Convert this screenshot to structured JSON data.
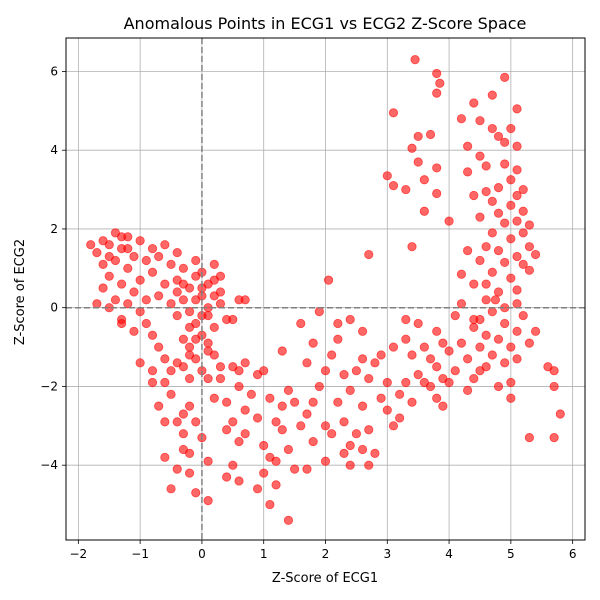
{
  "chart_data": {
    "type": "scatter",
    "title": "Anomalous Points in ECG1 vs ECG2 Z-Score Space",
    "xlabel": "Z-Score of ECG1",
    "ylabel": "Z-Score of ECG2",
    "xlim": [
      -2.2,
      6.2
    ],
    "ylim": [
      -5.9,
      6.85
    ],
    "xticks": [
      -2,
      -1,
      0,
      1,
      2,
      3,
      4,
      5,
      6
    ],
    "yticks": [
      -4,
      -2,
      0,
      2,
      4,
      6
    ],
    "grid": true,
    "reference_lines": {
      "x": 0,
      "y": 0,
      "style": "dashed",
      "color": "#808080"
    },
    "marker_color": "#ff0000",
    "marker_alpha": 0.6,
    "points": [
      [
        -1.8,
        1.6
      ],
      [
        -1.7,
        1.4
      ],
      [
        -1.6,
        1.1
      ],
      [
        -1.5,
        1.6
      ],
      [
        -1.5,
        0.8
      ],
      [
        -1.4,
        1.9
      ],
      [
        -1.4,
        1.2
      ],
      [
        -1.3,
        0.6
      ],
      [
        -1.3,
        1.5
      ],
      [
        -1.2,
        1.0
      ],
      [
        -1.2,
        1.8
      ],
      [
        -1.1,
        0.4
      ],
      [
        -1.1,
        1.3
      ],
      [
        -1.0,
        1.7
      ],
      [
        -1.0,
        0.7
      ],
      [
        -0.9,
        1.2
      ],
      [
        -0.9,
        0.2
      ],
      [
        -0.8,
        1.5
      ],
      [
        -0.8,
        0.9
      ],
      [
        -0.7,
        1.3
      ],
      [
        -0.7,
        0.3
      ],
      [
        -0.6,
        1.6
      ],
      [
        -0.6,
        0.6
      ],
      [
        -0.5,
        1.1
      ],
      [
        -0.5,
        0.1
      ],
      [
        -0.4,
        1.4
      ],
      [
        -0.4,
        0.7
      ],
      [
        -0.3,
        1.0
      ],
      [
        -0.3,
        0.2
      ],
      [
        -1.6,
        0.5
      ],
      [
        -1.4,
        0.2
      ],
      [
        -1.2,
        0.1
      ],
      [
        -1.0,
        -0.1
      ],
      [
        -0.9,
        -0.4
      ],
      [
        -0.8,
        -0.7
      ],
      [
        -0.7,
        -1.0
      ],
      [
        -0.6,
        -1.3
      ],
      [
        -0.5,
        -1.6
      ],
      [
        -1.3,
        -0.3
      ],
      [
        -1.1,
        -0.6
      ],
      [
        -1.0,
        -1.4
      ],
      [
        -0.8,
        -1.9
      ],
      [
        -0.6,
        -1.9
      ],
      [
        -1.7,
        0.1
      ],
      [
        -1.5,
        0.0
      ],
      [
        -1.3,
        -0.4
      ],
      [
        -1.2,
        1.5
      ],
      [
        -1.5,
        1.3
      ],
      [
        -1.6,
        1.7
      ],
      [
        -1.3,
        1.8
      ],
      [
        -0.1,
        1.2
      ],
      [
        0.0,
        0.9
      ],
      [
        0.1,
        0.6
      ],
      [
        0.2,
        0.3
      ],
      [
        0.3,
        0.1
      ],
      [
        0.0,
        0.5
      ],
      [
        -0.1,
        0.2
      ],
      [
        -0.2,
        -0.1
      ],
      [
        -0.1,
        -0.4
      ],
      [
        0.0,
        -0.7
      ],
      [
        -0.2,
        -1.0
      ],
      [
        -0.1,
        -1.3
      ],
      [
        0.0,
        -1.6
      ],
      [
        -0.2,
        -1.8
      ],
      [
        -0.3,
        -1.5
      ],
      [
        -0.2,
        -1.2
      ],
      [
        -0.3,
        -0.8
      ],
      [
        -0.2,
        -0.5
      ],
      [
        -0.4,
        -0.2
      ],
      [
        0.1,
        -0.2
      ],
      [
        0.2,
        -0.5
      ],
      [
        0.1,
        -0.9
      ],
      [
        0.2,
        -1.2
      ],
      [
        0.3,
        -1.5
      ],
      [
        0.1,
        -1.8
      ],
      [
        0.3,
        0.8
      ],
      [
        0.2,
        1.1
      ],
      [
        0.1,
        0.0
      ],
      [
        -0.3,
        0.6
      ],
      [
        -0.4,
        0.4
      ],
      [
        -0.1,
        0.8
      ],
      [
        0.0,
        0.3
      ],
      [
        0.3,
        0.4
      ],
      [
        0.2,
        0.7
      ],
      [
        -0.2,
        0.5
      ],
      [
        0.0,
        -0.2
      ],
      [
        -0.1,
        -0.8
      ],
      [
        0.1,
        -1.1
      ],
      [
        -0.4,
        -1.4
      ],
      [
        0.4,
        -0.3
      ],
      [
        -0.2,
        -2.5
      ],
      [
        -0.1,
        -2.9
      ],
      [
        -0.3,
        -3.2
      ],
      [
        -0.2,
        -3.7
      ],
      [
        -0.4,
        -4.1
      ],
      [
        -0.1,
        -4.7
      ],
      [
        0.0,
        -3.3
      ],
      [
        0.1,
        -3.9
      ],
      [
        -0.3,
        -2.7
      ],
      [
        0.2,
        -2.3
      ],
      [
        0.1,
        -4.9
      ],
      [
        -0.5,
        -4.6
      ],
      [
        -0.6,
        -3.8
      ],
      [
        -0.7,
        -2.5
      ],
      [
        -0.6,
        -2.9
      ],
      [
        -0.8,
        -1.6
      ],
      [
        -0.5,
        -2.2
      ],
      [
        -0.4,
        -2.9
      ],
      [
        -0.3,
        -3.6
      ],
      [
        -0.2,
        -4.2
      ],
      [
        0.3,
        -1.8
      ],
      [
        0.4,
        -2.4
      ],
      [
        0.5,
        -2.9
      ],
      [
        0.6,
        -3.4
      ],
      [
        0.7,
        -2.6
      ],
      [
        0.8,
        -2.2
      ],
      [
        0.6,
        -1.6
      ],
      [
        0.5,
        -4.0
      ],
      [
        0.4,
        -4.3
      ],
      [
        0.6,
        -4.4
      ],
      [
        0.7,
        -3.2
      ],
      [
        0.9,
        -2.8
      ],
      [
        0.9,
        -1.7
      ],
      [
        0.7,
        -1.4
      ],
      [
        0.6,
        -2.0
      ],
      [
        0.4,
        -3.1
      ],
      [
        0.6,
        0.2
      ],
      [
        0.5,
        -0.3
      ],
      [
        0.7,
        0.2
      ],
      [
        0.5,
        -1.5
      ],
      [
        1.0,
        -1.6
      ],
      [
        1.1,
        -2.3
      ],
      [
        1.2,
        -2.9
      ],
      [
        1.0,
        -3.5
      ],
      [
        1.1,
        -3.8
      ],
      [
        1.2,
        -4.5
      ],
      [
        1.3,
        -2.5
      ],
      [
        1.4,
        -2.1
      ],
      [
        1.3,
        -3.1
      ],
      [
        1.2,
        -3.9
      ],
      [
        1.5,
        -4.1
      ],
      [
        1.4,
        -3.6
      ],
      [
        1.6,
        -3.0
      ],
      [
        1.5,
        -2.4
      ],
      [
        1.7,
        -2.7
      ],
      [
        1.8,
        -3.4
      ],
      [
        1.9,
        -2.0
      ],
      [
        1.7,
        -1.4
      ],
      [
        1.8,
        -0.9
      ],
      [
        1.9,
        -0.1
      ],
      [
        1.6,
        -0.4
      ],
      [
        1.3,
        -1.1
      ],
      [
        1.1,
        -5.0
      ],
      [
        1.4,
        -5.4
      ],
      [
        1.0,
        -4.2
      ],
      [
        0.9,
        -4.6
      ],
      [
        1.7,
        -4.1
      ],
      [
        2.0,
        -3.0
      ],
      [
        1.8,
        -2.4
      ],
      [
        2.0,
        -1.6
      ],
      [
        2.1,
        -1.2
      ],
      [
        2.2,
        -0.8
      ],
      [
        2.3,
        -1.7
      ],
      [
        2.2,
        -2.4
      ],
      [
        2.1,
        -3.2
      ],
      [
        2.3,
        -2.9
      ],
      [
        2.4,
        -3.5
      ],
      [
        2.5,
        -3.2
      ],
      [
        2.4,
        -2.1
      ],
      [
        2.5,
        -1.6
      ],
      [
        2.6,
        -1.3
      ],
      [
        2.7,
        -1.8
      ],
      [
        2.6,
        -2.5
      ],
      [
        2.7,
        -3.1
      ],
      [
        2.8,
        -3.7
      ],
      [
        2.7,
        -4.0
      ],
      [
        2.9,
        -2.3
      ],
      [
        3.0,
        -2.6
      ],
      [
        2.9,
        -1.2
      ],
      [
        3.0,
        -1.9
      ],
      [
        2.2,
        -0.4
      ],
      [
        2.4,
        -0.3
      ],
      [
        2.6,
        -0.6
      ],
      [
        2.8,
        -1.4
      ],
      [
        3.1,
        -1.0
      ],
      [
        3.1,
        -3.0
      ],
      [
        2.3,
        -3.7
      ],
      [
        2.6,
        -3.6
      ],
      [
        2.0,
        -3.9
      ],
      [
        2.4,
        -4.0
      ],
      [
        2.05,
        0.7
      ],
      [
        2.7,
        1.35
      ],
      [
        3.2,
        -2.2
      ],
      [
        3.3,
        -0.8
      ],
      [
        3.3,
        -1.9
      ],
      [
        3.4,
        -1.2
      ],
      [
        3.4,
        -2.4
      ],
      [
        3.5,
        -1.7
      ],
      [
        3.5,
        -0.4
      ],
      [
        3.6,
        -1.0
      ],
      [
        3.7,
        -2.0
      ],
      [
        3.8,
        -0.6
      ],
      [
        3.8,
        -1.5
      ],
      [
        3.9,
        -0.9
      ],
      [
        3.8,
        -2.3
      ],
      [
        3.6,
        -1.9
      ],
      [
        3.3,
        -0.3
      ],
      [
        3.2,
        -2.8
      ],
      [
        3.7,
        -1.3
      ],
      [
        3.9,
        -1.8
      ],
      [
        4.0,
        -1.1
      ],
      [
        4.1,
        -0.2
      ],
      [
        4.1,
        -1.6
      ],
      [
        4.2,
        -0.9
      ],
      [
        4.2,
        0.1
      ],
      [
        4.3,
        -1.3
      ],
      [
        4.4,
        -0.5
      ],
      [
        4.4,
        -1.8
      ],
      [
        4.5,
        -0.3
      ],
      [
        4.5,
        -1.0
      ],
      [
        4.6,
        -1.5
      ],
      [
        4.6,
        -0.7
      ],
      [
        4.7,
        -0.1
      ],
      [
        4.7,
        -1.2
      ],
      [
        4.8,
        0.4
      ],
      [
        4.8,
        -0.8
      ],
      [
        4.9,
        -1.4
      ],
      [
        4.9,
        -0.4
      ],
      [
        5.0,
        -1.0
      ],
      [
        5.0,
        -1.9
      ],
      [
        5.1,
        -0.6
      ],
      [
        5.1,
        -1.3
      ],
      [
        5.2,
        -0.2
      ],
      [
        5.3,
        -0.9
      ],
      [
        5.3,
        -3.3
      ],
      [
        5.4,
        -0.6
      ],
      [
        5.6,
        -1.5
      ],
      [
        5.7,
        -1.6
      ],
      [
        5.7,
        -2.0
      ],
      [
        5.7,
        -3.3
      ],
      [
        5.8,
        -2.7
      ],
      [
        4.3,
        -2.1
      ],
      [
        4.0,
        -1.9
      ],
      [
        3.9,
        -2.5
      ],
      [
        4.5,
        -1.6
      ],
      [
        4.8,
        -2.0
      ],
      [
        5.0,
        -2.3
      ],
      [
        4.9,
        0.0
      ],
      [
        5.1,
        0.1
      ],
      [
        4.6,
        0.2
      ],
      [
        3.4,
        1.55
      ],
      [
        3.6,
        2.45
      ],
      [
        3.8,
        2.9
      ],
      [
        3.3,
        3.0
      ],
      [
        3.5,
        3.7
      ],
      [
        3.4,
        4.05
      ],
      [
        3.5,
        4.35
      ],
      [
        3.7,
        4.4
      ],
      [
        3.8,
        3.55
      ],
      [
        3.6,
        3.25
      ],
      [
        3.0,
        3.35
      ],
      [
        3.1,
        3.1
      ],
      [
        3.1,
        4.95
      ],
      [
        3.45,
        6.3
      ],
      [
        3.8,
        5.95
      ],
      [
        3.85,
        5.7
      ],
      [
        3.8,
        5.45
      ],
      [
        4.0,
        2.2
      ],
      [
        4.2,
        0.85
      ],
      [
        4.3,
        1.45
      ],
      [
        4.2,
        4.8
      ],
      [
        4.3,
        4.1
      ],
      [
        4.3,
        3.45
      ],
      [
        4.4,
        2.85
      ],
      [
        4.4,
        5.2
      ],
      [
        4.5,
        4.75
      ],
      [
        4.5,
        3.85
      ],
      [
        4.5,
        2.3
      ],
      [
        4.6,
        3.6
      ],
      [
        4.6,
        2.95
      ],
      [
        4.7,
        4.55
      ],
      [
        4.7,
        5.4
      ],
      [
        4.7,
        2.7
      ],
      [
        4.7,
        1.9
      ],
      [
        4.8,
        4.35
      ],
      [
        4.8,
        3.05
      ],
      [
        4.8,
        2.4
      ],
      [
        4.8,
        1.45
      ],
      [
        4.9,
        5.85
      ],
      [
        4.9,
        3.65
      ],
      [
        4.9,
        4.2
      ],
      [
        4.9,
        2.15
      ],
      [
        4.9,
        1.15
      ],
      [
        5.0,
        4.55
      ],
      [
        5.0,
        3.25
      ],
      [
        5.0,
        2.6
      ],
      [
        5.0,
        1.75
      ],
      [
        5.0,
        0.75
      ],
      [
        5.1,
        5.05
      ],
      [
        5.1,
        4.1
      ],
      [
        5.1,
        3.5
      ],
      [
        5.1,
        2.85
      ],
      [
        5.1,
        2.2
      ],
      [
        5.1,
        1.3
      ],
      [
        5.1,
        0.45
      ],
      [
        5.2,
        3.0
      ],
      [
        5.2,
        2.45
      ],
      [
        5.2,
        1.9
      ],
      [
        5.2,
        1.1
      ],
      [
        5.3,
        2.1
      ],
      [
        5.3,
        1.55
      ],
      [
        5.3,
        0.95
      ],
      [
        5.4,
        1.35
      ],
      [
        4.5,
        1.2
      ],
      [
        4.6,
        0.6
      ],
      [
        4.6,
        1.55
      ],
      [
        4.75,
        0.2
      ],
      [
        4.4,
        0.6
      ],
      [
        4.4,
        -0.3
      ],
      [
        4.7,
        0.9
      ]
    ]
  }
}
